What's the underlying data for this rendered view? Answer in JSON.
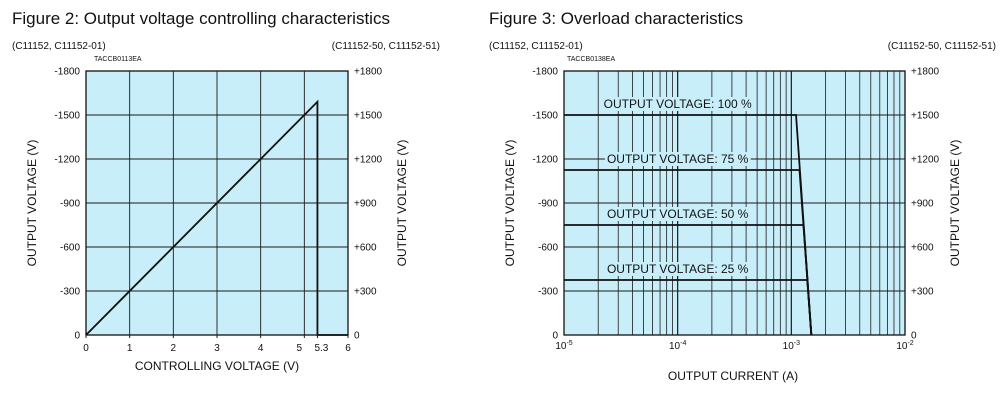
{
  "colors": {
    "plot_bg": "#c8eefa",
    "grid": "#1a1a1a",
    "line": "#111111"
  },
  "chart_data": [
    {
      "type": "line",
      "title": "Figure 2: Output voltage controlling characteristics",
      "left_subtitle": "(C11152, C11152-01)",
      "right_subtitle": "(C11152-50, C11152-51)",
      "code": "TACCB0113EA",
      "xlabel": "CONTROLLING VOLTAGE (V)",
      "ylabel_left": "OUTPUT VOLTAGE (V)",
      "ylabel_right": "OUTPUT VOLTAGE (V)",
      "xlim": [
        0,
        6
      ],
      "ylim": [
        0,
        1800
      ],
      "x_ticks": [
        "0",
        "1",
        "2",
        "3",
        "4",
        "5",
        "5.3",
        "6"
      ],
      "x_tick_values": [
        0,
        1,
        2,
        3,
        4,
        5,
        5.3,
        6
      ],
      "y_ticks_left": [
        "0",
        "-300",
        "-600",
        "-900",
        "-1200",
        "-1500",
        "-1800"
      ],
      "y_ticks_right": [
        "0",
        "+300",
        "+600",
        "+900",
        "+1200",
        "+1500",
        "+1800"
      ],
      "y_tick_values": [
        0,
        300,
        600,
        900,
        1200,
        1500,
        1800
      ],
      "grid": true,
      "series": [
        {
          "x": [
            0,
            5.3,
            5.3,
            6
          ],
          "y": [
            0,
            1590,
            0,
            0
          ]
        }
      ]
    },
    {
      "type": "line",
      "title": "Figure 3: Overload characteristics",
      "left_subtitle": "(C11152, C11152-01)",
      "right_subtitle": "(C11152-50, C11152-51)",
      "code": "TACCB0138EA",
      "xlabel": "OUTPUT CURRENT (A)",
      "ylabel_left": "OUTPUT VOLTAGE (V)",
      "ylabel_right": "OUTPUT VOLTAGE (V)",
      "x_scale": "log",
      "xlim": [
        1e-05,
        0.01
      ],
      "ylim": [
        0,
        1800
      ],
      "x_ticks": [
        {
          "base": "10",
          "exp": "-5"
        },
        {
          "base": "10",
          "exp": "-4"
        },
        {
          "base": "10",
          "exp": "-3"
        },
        {
          "base": "10",
          "exp": "-2"
        }
      ],
      "x_tick_values": [
        1e-05,
        0.0001,
        0.001,
        0.01
      ],
      "y_ticks_left": [
        "0",
        "-300",
        "-600",
        "-900",
        "-1200",
        "-1500",
        "-1800"
      ],
      "y_ticks_right": [
        "0",
        "+300",
        "+600",
        "+900",
        "+1200",
        "+1500",
        "+1800"
      ],
      "y_tick_values": [
        0,
        300,
        600,
        900,
        1200,
        1500,
        1800
      ],
      "grid": true,
      "series": [
        {
          "name": "OUTPUT VOLTAGE: 100 %",
          "x": [
            1e-05,
            0.0011,
            0.0015
          ],
          "y": [
            1500,
            1500,
            0
          ]
        },
        {
          "name": "OUTPUT VOLTAGE: 75 %",
          "x": [
            1e-05,
            0.00118,
            0.0015
          ],
          "y": [
            1125,
            1125,
            0
          ]
        },
        {
          "name": "OUTPUT VOLTAGE: 50 %",
          "x": [
            1e-05,
            0.00128,
            0.0015
          ],
          "y": [
            750,
            750,
            0
          ]
        },
        {
          "name": "OUTPUT VOLTAGE: 25 %",
          "x": [
            1e-05,
            0.00138,
            0.0015
          ],
          "y": [
            375,
            375,
            0
          ]
        }
      ]
    }
  ]
}
